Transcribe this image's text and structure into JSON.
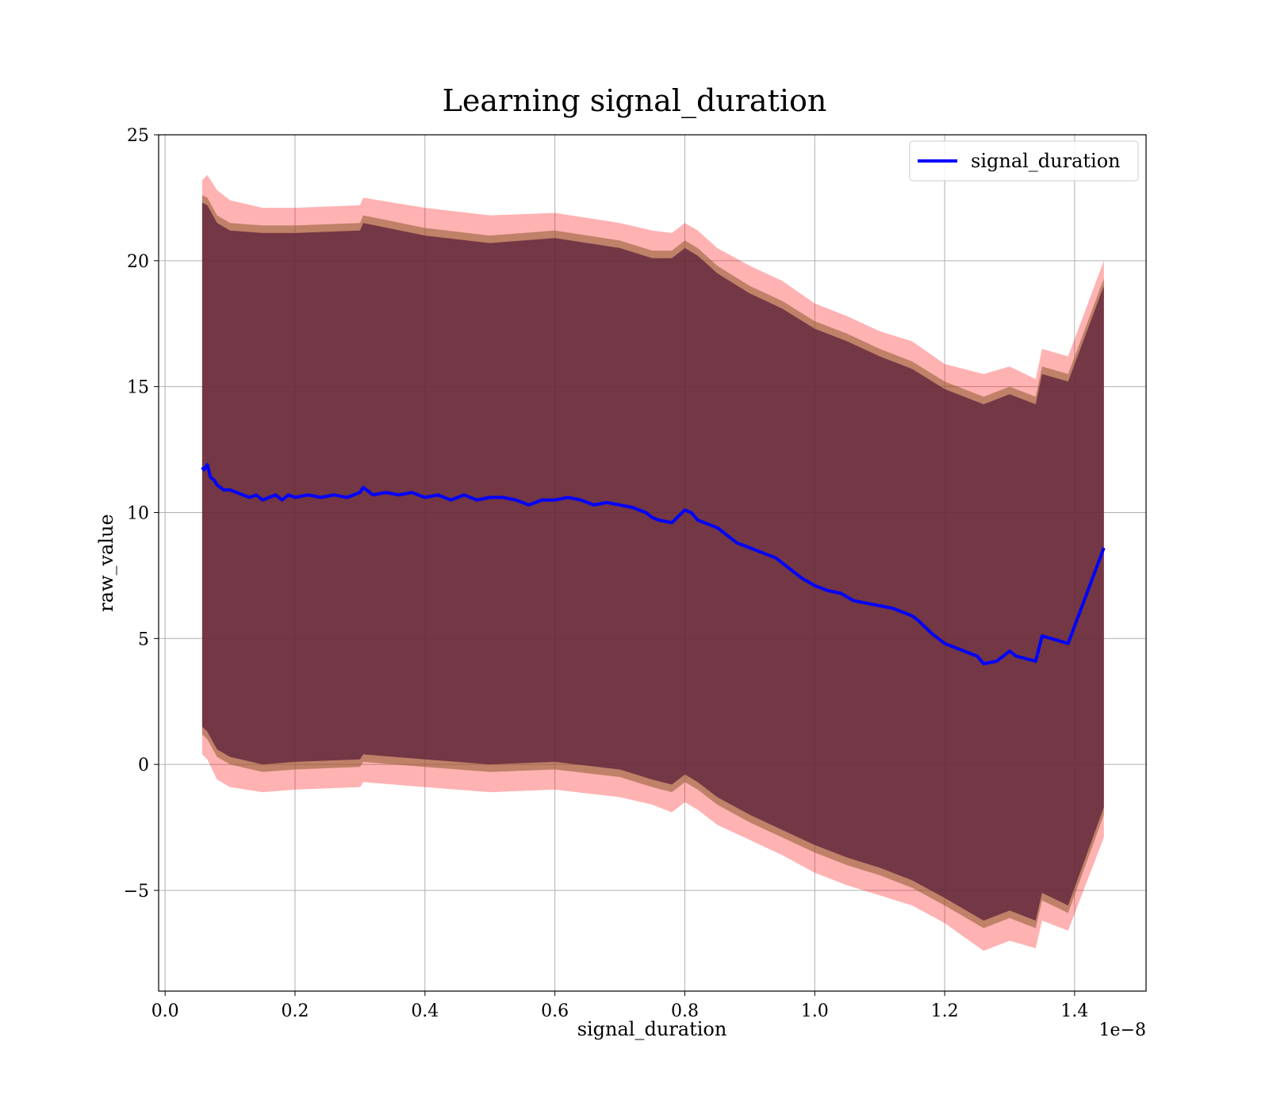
{
  "chart_data": {
    "type": "line",
    "title": "Learning signal_duration",
    "xlabel": "signal_duration",
    "ylabel": "raw_value",
    "x_offset_label": "1e−8",
    "xlim": [
      -0.01,
      1.51
    ],
    "ylim": [
      -9,
      25
    ],
    "xticks": [
      0.0,
      0.2,
      0.4,
      0.6,
      0.8,
      1.0,
      1.2,
      1.4
    ],
    "xtick_labels": [
      "0.0",
      "0.2",
      "0.4",
      "0.6",
      "0.8",
      "1.0",
      "1.2",
      "1.4"
    ],
    "yticks": [
      -5,
      0,
      5,
      10,
      15,
      20,
      25
    ],
    "ytick_labels": [
      "−5",
      "0",
      "5",
      "10",
      "15",
      "20",
      "25"
    ],
    "grid": true,
    "legend": {
      "position": "top-right",
      "entries": [
        "signal_duration"
      ]
    },
    "colors": {
      "line": "#0000ff",
      "band_outer": "#ff0000",
      "band_middle": "#8b5a2b",
      "band_inner": "#5a1f3a",
      "grid": "#b0b0b0"
    },
    "series": [
      {
        "name": "signal_duration",
        "x": [
          0.057,
          0.06,
          0.065,
          0.07,
          0.075,
          0.08,
          0.085,
          0.09,
          0.1,
          0.11,
          0.12,
          0.13,
          0.14,
          0.15,
          0.16,
          0.17,
          0.18,
          0.19,
          0.2,
          0.22,
          0.24,
          0.26,
          0.28,
          0.3,
          0.305,
          0.32,
          0.34,
          0.36,
          0.38,
          0.4,
          0.42,
          0.44,
          0.46,
          0.48,
          0.5,
          0.52,
          0.54,
          0.56,
          0.58,
          0.6,
          0.62,
          0.64,
          0.66,
          0.68,
          0.7,
          0.72,
          0.74,
          0.75,
          0.76,
          0.78,
          0.8,
          0.81,
          0.82,
          0.83,
          0.85,
          0.87,
          0.88,
          0.9,
          0.92,
          0.94,
          0.96,
          0.98,
          1.0,
          1.02,
          1.04,
          1.06,
          1.08,
          1.1,
          1.12,
          1.14,
          1.15,
          1.16,
          1.18,
          1.2,
          1.22,
          1.24,
          1.25,
          1.26,
          1.28,
          1.3,
          1.31,
          1.34,
          1.35,
          1.39,
          1.445
        ],
        "y": [
          11.8,
          11.7,
          11.9,
          11.4,
          11.3,
          11.1,
          11.0,
          10.9,
          10.9,
          10.8,
          10.7,
          10.6,
          10.7,
          10.5,
          10.6,
          10.7,
          10.5,
          10.7,
          10.6,
          10.7,
          10.6,
          10.7,
          10.6,
          10.8,
          11.0,
          10.7,
          10.8,
          10.7,
          10.8,
          10.6,
          10.7,
          10.5,
          10.7,
          10.5,
          10.6,
          10.6,
          10.5,
          10.3,
          10.5,
          10.5,
          10.6,
          10.5,
          10.3,
          10.4,
          10.3,
          10.2,
          10.0,
          9.8,
          9.7,
          9.6,
          10.1,
          10.0,
          9.7,
          9.6,
          9.4,
          9.0,
          8.8,
          8.6,
          8.4,
          8.2,
          7.8,
          7.4,
          7.1,
          6.9,
          6.8,
          6.5,
          6.4,
          6.3,
          6.2,
          6.0,
          5.9,
          5.7,
          5.2,
          4.8,
          4.6,
          4.4,
          4.3,
          4.0,
          4.1,
          4.5,
          4.3,
          4.1,
          5.1,
          4.8,
          8.6
        ]
      }
    ],
    "bands": {
      "x": [
        0.057,
        0.065,
        0.08,
        0.1,
        0.15,
        0.2,
        0.3,
        0.305,
        0.4,
        0.5,
        0.6,
        0.7,
        0.75,
        0.78,
        0.8,
        0.82,
        0.85,
        0.9,
        0.95,
        1.0,
        1.05,
        1.1,
        1.15,
        1.2,
        1.26,
        1.3,
        1.34,
        1.35,
        1.39,
        1.445
      ],
      "outer_upper": [
        23.2,
        23.4,
        22.8,
        22.4,
        22.1,
        22.1,
        22.2,
        22.5,
        22.1,
        21.8,
        21.9,
        21.5,
        21.2,
        21.1,
        21.5,
        21.2,
        20.5,
        19.8,
        19.2,
        18.3,
        17.8,
        17.2,
        16.8,
        15.9,
        15.5,
        15.8,
        15.3,
        16.5,
        16.2,
        20.0
      ],
      "outer_lower": [
        0.4,
        0.2,
        -0.6,
        -0.9,
        -1.1,
        -1.0,
        -0.9,
        -0.7,
        -0.9,
        -1.1,
        -1.0,
        -1.3,
        -1.6,
        -1.9,
        -1.5,
        -1.8,
        -2.4,
        -3.0,
        -3.6,
        -4.3,
        -4.8,
        -5.2,
        -5.6,
        -6.3,
        -7.4,
        -7.0,
        -7.3,
        -6.2,
        -6.6,
        -2.9
      ],
      "middle_upper": [
        22.6,
        22.5,
        21.8,
        21.5,
        21.4,
        21.4,
        21.5,
        21.8,
        21.3,
        21.0,
        21.2,
        20.8,
        20.4,
        20.4,
        20.8,
        20.5,
        19.8,
        19.0,
        18.4,
        17.6,
        17.1,
        16.5,
        16.0,
        15.2,
        14.6,
        15.0,
        14.6,
        15.8,
        15.5,
        19.3
      ],
      "middle_lower": [
        1.2,
        1.0,
        0.3,
        0.0,
        -0.3,
        -0.2,
        -0.1,
        0.1,
        -0.1,
        -0.3,
        -0.2,
        -0.5,
        -0.9,
        -1.1,
        -0.7,
        -1.0,
        -1.6,
        -2.3,
        -2.9,
        -3.5,
        -4.0,
        -4.4,
        -4.9,
        -5.6,
        -6.5,
        -6.1,
        -6.5,
        -5.4,
        -5.9,
        -2.0
      ],
      "inner_upper": [
        22.3,
        22.2,
        21.5,
        21.2,
        21.1,
        21.1,
        21.2,
        21.5,
        21.0,
        20.7,
        20.9,
        20.5,
        20.1,
        20.1,
        20.5,
        20.2,
        19.5,
        18.7,
        18.1,
        17.3,
        16.8,
        16.2,
        15.7,
        14.9,
        14.3,
        14.7,
        14.3,
        15.5,
        15.2,
        19.0
      ],
      "inner_lower": [
        1.5,
        1.3,
        0.6,
        0.3,
        0.0,
        0.1,
        0.2,
        0.4,
        0.2,
        0.0,
        0.1,
        -0.2,
        -0.6,
        -0.8,
        -0.4,
        -0.7,
        -1.3,
        -2.0,
        -2.6,
        -3.2,
        -3.7,
        -4.1,
        -4.6,
        -5.3,
        -6.2,
        -5.8,
        -6.2,
        -5.1,
        -5.6,
        -1.7
      ]
    }
  }
}
